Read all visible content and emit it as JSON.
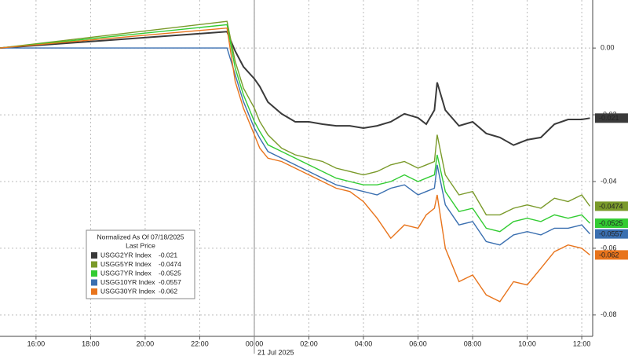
{
  "chart_data": {
    "type": "line",
    "legend_title": "Normalized As Of 07/18/2025",
    "legend_subtitle": "Last Price",
    "legend": "bottom-left",
    "grid": true,
    "annotation": {
      "x": 24,
      "label": "21 Jul 2025"
    },
    "x": [
      14.68,
      23.0,
      23.3,
      23.6,
      24.0,
      24.2,
      24.5,
      25,
      25.5,
      26,
      26.5,
      27,
      27.5,
      28,
      28.5,
      29,
      29.5,
      30,
      30.3,
      30.6,
      30.7,
      31,
      31.5,
      32,
      32.5,
      33,
      33.5,
      34,
      34.5,
      35,
      35.5,
      36,
      36.3
    ],
    "xlim": [
      14.68,
      36.4
    ],
    "xticks": [
      {
        "value": 16,
        "label": "16:00"
      },
      {
        "value": 18,
        "label": "18:00"
      },
      {
        "value": 20,
        "label": "20:00"
      },
      {
        "value": 22,
        "label": "22:00"
      },
      {
        "value": 24,
        "label": "00:00"
      },
      {
        "value": 26,
        "label": "02:00"
      },
      {
        "value": 28,
        "label": "04:00"
      },
      {
        "value": 30,
        "label": "06:00"
      },
      {
        "value": 32,
        "label": "08:00"
      },
      {
        "value": 34,
        "label": "10:00"
      },
      {
        "value": 36,
        "label": "12:00"
      }
    ],
    "ylim": [
      -0.0864,
      0.0144
    ],
    "yticks": [
      {
        "value": 0,
        "label": "0.00"
      },
      -0.02,
      -0.04,
      -0.06,
      -0.08
    ],
    "series": [
      {
        "name": "USGG2YR Index",
        "color": "#3a3a3a",
        "values": [
          0,
          0.0049,
          -0.0009,
          -0.0056,
          -0.0092,
          -0.0115,
          -0.0162,
          -0.0197,
          -0.0221,
          -0.0221,
          -0.0228,
          -0.0233,
          -0.0233,
          -0.024,
          -0.0233,
          -0.0221,
          -0.0197,
          -0.0209,
          -0.0228,
          -0.0186,
          -0.0103,
          -0.0186,
          -0.0233,
          -0.0221,
          -0.0256,
          -0.0268,
          -0.0291,
          -0.0275,
          -0.0268,
          -0.0228,
          -0.0214,
          -0.0214,
          -0.021
        ]
      },
      {
        "name": "USGG5YR Index",
        "color": "#7a9a2a",
        "values": [
          0,
          0.008,
          -0.004,
          -0.012,
          -0.018,
          -0.022,
          -0.026,
          -0.03,
          -0.032,
          -0.033,
          -0.034,
          -0.036,
          -0.037,
          -0.038,
          -0.037,
          -0.035,
          -0.034,
          -0.036,
          -0.035,
          -0.034,
          -0.026,
          -0.038,
          -0.044,
          -0.043,
          -0.05,
          -0.05,
          -0.048,
          -0.047,
          -0.048,
          -0.045,
          -0.046,
          -0.044,
          -0.0474
        ]
      },
      {
        "name": "USGG7YR Index",
        "color": "#33cc33",
        "values": [
          0,
          0.007,
          -0.006,
          -0.014,
          -0.022,
          -0.025,
          -0.029,
          -0.031,
          -0.033,
          -0.035,
          -0.037,
          -0.039,
          -0.04,
          -0.041,
          -0.041,
          -0.04,
          -0.038,
          -0.04,
          -0.039,
          -0.038,
          -0.032,
          -0.043,
          -0.049,
          -0.048,
          -0.054,
          -0.055,
          -0.052,
          -0.051,
          -0.052,
          -0.05,
          -0.051,
          -0.05,
          -0.0525
        ]
      },
      {
        "name": "USGG10YR Index",
        "color": "#3a6fb0",
        "values": [
          0,
          0,
          -0.008,
          -0.016,
          -0.024,
          -0.027,
          -0.031,
          -0.033,
          -0.035,
          -0.037,
          -0.039,
          -0.041,
          -0.042,
          -0.043,
          -0.044,
          -0.042,
          -0.041,
          -0.044,
          -0.043,
          -0.042,
          -0.035,
          -0.047,
          -0.053,
          -0.052,
          -0.058,
          -0.059,
          -0.056,
          -0.055,
          -0.056,
          -0.054,
          -0.054,
          -0.053,
          -0.0557
        ]
      },
      {
        "name": "USGG30YR Index",
        "color": "#e8741c",
        "values": [
          0,
          0.006,
          -0.01,
          -0.018,
          -0.026,
          -0.03,
          -0.033,
          -0.034,
          -0.036,
          -0.038,
          -0.04,
          -0.042,
          -0.043,
          -0.046,
          -0.051,
          -0.057,
          -0.053,
          -0.054,
          -0.05,
          -0.048,
          -0.044,
          -0.06,
          -0.07,
          -0.068,
          -0.074,
          -0.076,
          -0.07,
          -0.071,
          -0.066,
          -0.061,
          -0.059,
          -0.06,
          -0.062
        ]
      }
    ]
  }
}
